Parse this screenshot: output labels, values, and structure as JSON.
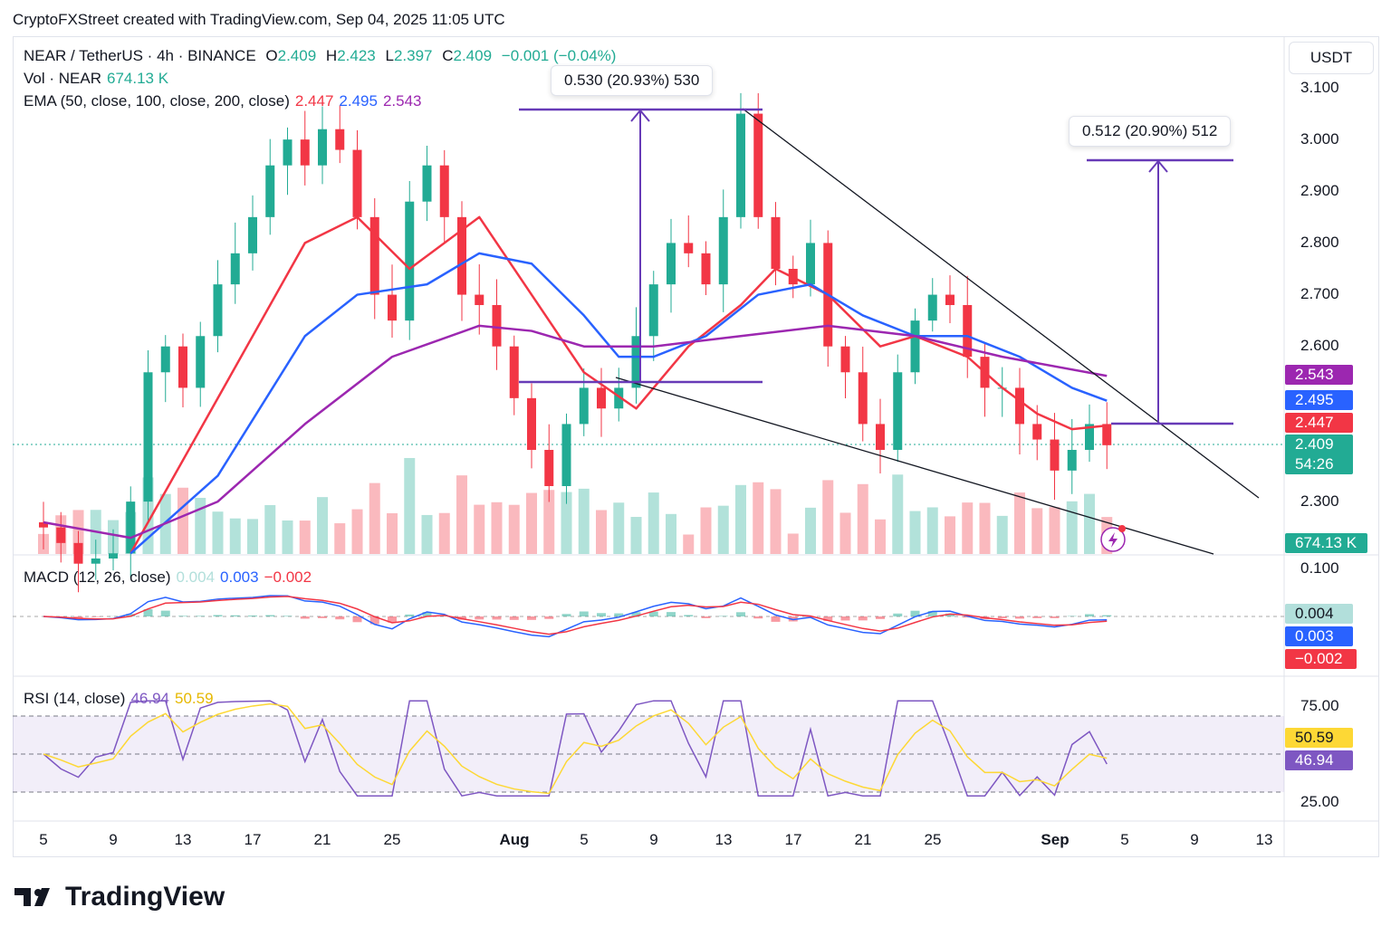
{
  "credit": "CryptoFXStreet created with TradingView.com, Sep 04, 2025 11:05 UTC",
  "legend": {
    "symbol": "NEAR / TetherUS · 4h · BINANCE",
    "o_lbl": "O",
    "o": "2.409",
    "h_lbl": "H",
    "h": "2.423",
    "l_lbl": "L",
    "l": "2.397",
    "c_lbl": "C",
    "c": "2.409",
    "change": "−0.001 (−0.04%)",
    "vol_lbl": "Vol · NEAR",
    "vol": "674.13 K",
    "ema_lbl": "EMA (50, close, 100, close, 200, close)",
    "ema50": "2.447",
    "ema100": "2.495",
    "ema200": "2.543",
    "macd_lbl": "MACD (12, 26, close)",
    "macd_hist": "0.004",
    "macd": "0.003",
    "macd_signal": "−0.002",
    "rsi_lbl": "RSI (14, close)",
    "rsi": "46.94",
    "rsi_ma": "50.59"
  },
  "currency": "USDT",
  "price_axis": [
    "3.100",
    "3.000",
    "2.900",
    "2.800",
    "2.700",
    "2.600",
    "2.300"
  ],
  "tags": {
    "ema200": "2.543",
    "ema100": "2.495",
    "ema50": "2.447",
    "last": "2.409",
    "countdown": "54:26",
    "volume": "674.13 K",
    "macd_hist": "0.004",
    "macd": "0.003",
    "macd_signal": "−0.002",
    "rsi_ma": "50.59",
    "rsi": "46.94"
  },
  "macd_axis": "0.100",
  "rsi_axis": [
    "75.00",
    "25.00"
  ],
  "time_axis": [
    "5",
    "9",
    "13",
    "17",
    "21",
    "25",
    "Aug",
    "5",
    "9",
    "13",
    "17",
    "21",
    "25",
    "Sep",
    "5",
    "9",
    "13"
  ],
  "measures": [
    "0.530 (20.93%) 530",
    "0.512 (20.90%) 512"
  ],
  "brand": "TradingView",
  "colors": {
    "up": "#22ab94",
    "down": "#f23645",
    "ema50": "#f23645",
    "ema100": "#2962ff",
    "ema200": "#9c27b0",
    "drawing": "#673ab7"
  },
  "chart_data": {
    "type": "candlestick",
    "title": "NEAR / TetherUS · 4h · BINANCE",
    "x_unit": "days since Jul 5, 2025",
    "ylim": [
      2.22,
      3.12
    ],
    "closes": [
      2.25,
      2.22,
      2.18,
      2.19,
      2.2,
      2.3,
      2.55,
      2.6,
      2.52,
      2.62,
      2.72,
      2.78,
      2.85,
      2.95,
      3.0,
      2.95,
      3.02,
      2.98,
      2.85,
      2.7,
      2.65,
      2.88,
      2.95,
      2.85,
      2.7,
      2.68,
      2.6,
      2.5,
      2.4,
      2.33,
      2.45,
      2.52,
      2.48,
      2.52,
      2.62,
      2.72,
      2.8,
      2.78,
      2.72,
      2.85,
      3.05,
      2.85,
      2.75,
      2.72,
      2.8,
      2.6,
      2.55,
      2.45,
      2.4,
      2.55,
      2.65,
      2.7,
      2.68,
      2.58,
      2.52,
      2.52,
      2.45,
      2.42,
      2.36,
      2.4,
      2.45,
      2.409
    ],
    "ema50": [
      [
        5,
        2.2
      ],
      [
        10,
        2.5
      ],
      [
        15,
        2.8
      ],
      [
        18,
        2.85
      ],
      [
        21,
        2.75
      ],
      [
        25,
        2.85
      ],
      [
        28,
        2.7
      ],
      [
        31,
        2.55
      ],
      [
        34,
        2.48
      ],
      [
        37,
        2.6
      ],
      [
        40,
        2.68
      ],
      [
        42,
        2.75
      ],
      [
        45,
        2.7
      ],
      [
        48,
        2.6
      ],
      [
        50,
        2.62
      ],
      [
        53,
        2.58
      ],
      [
        55,
        2.52
      ],
      [
        57,
        2.47
      ],
      [
        59,
        2.44
      ],
      [
        61,
        2.447
      ]
    ],
    "ema100": [
      [
        5,
        2.2
      ],
      [
        10,
        2.35
      ],
      [
        15,
        2.62
      ],
      [
        18,
        2.7
      ],
      [
        22,
        2.72
      ],
      [
        25,
        2.78
      ],
      [
        28,
        2.76
      ],
      [
        31,
        2.66
      ],
      [
        33,
        2.58
      ],
      [
        35,
        2.58
      ],
      [
        38,
        2.62
      ],
      [
        41,
        2.7
      ],
      [
        44,
        2.72
      ],
      [
        47,
        2.66
      ],
      [
        50,
        2.62
      ],
      [
        53,
        2.62
      ],
      [
        56,
        2.58
      ],
      [
        59,
        2.52
      ],
      [
        61,
        2.495
      ]
    ],
    "ema200": [
      [
        0,
        2.26
      ],
      [
        5,
        2.23
      ],
      [
        10,
        2.3
      ],
      [
        15,
        2.45
      ],
      [
        20,
        2.58
      ],
      [
        25,
        2.64
      ],
      [
        28,
        2.63
      ],
      [
        31,
        2.6
      ],
      [
        35,
        2.6
      ],
      [
        40,
        2.62
      ],
      [
        45,
        2.64
      ],
      [
        50,
        2.62
      ],
      [
        55,
        2.58
      ],
      [
        61,
        2.543
      ]
    ]
  }
}
